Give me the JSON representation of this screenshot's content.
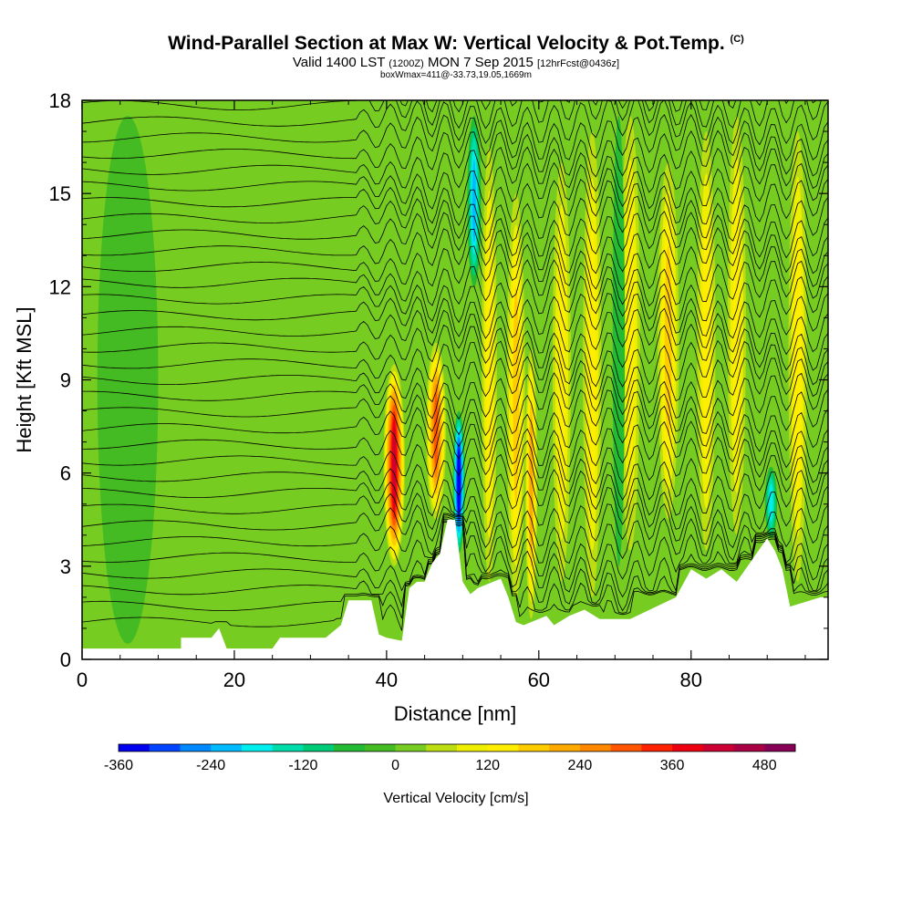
{
  "header": {
    "title": "Wind-Parallel Section at Max W: Vertical Velocity & Pot.Temp.",
    "title_mark": "(C)",
    "valid_prefix": "Valid 1400 LST",
    "valid_zulu": "(1200Z)",
    "valid_date": "MON 7 Sep 2015",
    "forecast": "[12hrFcst@0436z]",
    "boxinfo": "boxWmax=411@-33.73,19.05,1669m"
  },
  "chart_data": {
    "type": "heatmap",
    "xlabel": "Distance [nm]",
    "ylabel": "Height [Kft MSL]",
    "xlim": [
      0,
      98
    ],
    "ylim": [
      0,
      18
    ],
    "x_ticks": [
      "0",
      "20",
      "40",
      "60",
      "80"
    ],
    "x_tick_values": [
      0,
      20,
      40,
      60,
      80
    ],
    "y_ticks": [
      "0",
      "3",
      "6",
      "9",
      "12",
      "15",
      "18"
    ],
    "y_tick_values": [
      0,
      3,
      6,
      9,
      12,
      15,
      18
    ],
    "colorbar": {
      "title": "Vertical Velocity [cm/s]",
      "labels": [
        "-360",
        "-240",
        "-120",
        "0",
        "120",
        "240",
        "360",
        "480"
      ],
      "label_values": [
        -360,
        -240,
        -120,
        0,
        120,
        240,
        360,
        480
      ],
      "min": -360,
      "max": 520,
      "step": 40,
      "colors": [
        "#0000ee",
        "#0044ff",
        "#0088ff",
        "#00bbff",
        "#00eeee",
        "#00ddaa",
        "#00cc77",
        "#22bb33",
        "#44bb22",
        "#77cc22",
        "#bbdd11",
        "#eeee00",
        "#ffee00",
        "#ffcc00",
        "#ffaa00",
        "#ff8800",
        "#ff5500",
        "#ff2200",
        "#ee0011",
        "#cc0033",
        "#aa0044",
        "#880055"
      ]
    },
    "terrain": [
      [
        0,
        0.35
      ],
      [
        13,
        0.35
      ],
      [
        13,
        0.7
      ],
      [
        17,
        0.7
      ],
      [
        18,
        1.0
      ],
      [
        19,
        0.35
      ],
      [
        25,
        0.35
      ],
      [
        26,
        0.7
      ],
      [
        32,
        0.7
      ],
      [
        33,
        0.9
      ],
      [
        34,
        1.1
      ],
      [
        35,
        1.9
      ],
      [
        38,
        1.9
      ],
      [
        39,
        0.8
      ],
      [
        40,
        0.7
      ],
      [
        42,
        0.6
      ],
      [
        43,
        2.3
      ],
      [
        44,
        2.5
      ],
      [
        45,
        2.5
      ],
      [
        46,
        3.1
      ],
      [
        47,
        3.4
      ],
      [
        48,
        4.5
      ],
      [
        49,
        4.5
      ],
      [
        50,
        2.5
      ],
      [
        51,
        2.1
      ],
      [
        52,
        2.3
      ],
      [
        55,
        2.6
      ],
      [
        56,
        2.0
      ],
      [
        57,
        1.2
      ],
      [
        58,
        1.1
      ],
      [
        61,
        1.4
      ],
      [
        62,
        1.1
      ],
      [
        64,
        1.4
      ],
      [
        66,
        1.6
      ],
      [
        68,
        1.3
      ],
      [
        72,
        1.3
      ],
      [
        78,
        2.0
      ],
      [
        80,
        2.9
      ],
      [
        82,
        2.6
      ],
      [
        84,
        2.9
      ],
      [
        86,
        2.5
      ],
      [
        88,
        3.2
      ],
      [
        90,
        3.9
      ],
      [
        91,
        3.5
      ],
      [
        92,
        2.9
      ],
      [
        93,
        1.7
      ],
      [
        97,
        2.0
      ],
      [
        98,
        2.0
      ]
    ],
    "vertical_velocity_features": [
      {
        "x": 41,
        "ymin": 3.0,
        "ymax": 9.5,
        "w": 420,
        "width": 1.4
      },
      {
        "x": 46.5,
        "ymin": 4.5,
        "ymax": 10.2,
        "w": 300,
        "width": 1.3
      },
      {
        "x": 49.5,
        "ymin": 3.4,
        "ymax": 8.0,
        "w": -360,
        "width": 0.8
      },
      {
        "x": 51.5,
        "ymin": 12.0,
        "ymax": 17.5,
        "w": -200,
        "width": 0.9
      },
      {
        "x": 53.5,
        "ymin": 2.5,
        "ymax": 16.5,
        "w": 150,
        "width": 1.0
      },
      {
        "x": 57,
        "ymin": 2.0,
        "ymax": 15.0,
        "w": 160,
        "width": 1.2
      },
      {
        "x": 59,
        "ymin": 1.3,
        "ymax": 10.0,
        "w": 200,
        "width": 0.8
      },
      {
        "x": 63,
        "ymin": 2.5,
        "ymax": 16.0,
        "w": 130,
        "width": 1.2
      },
      {
        "x": 67,
        "ymin": 2.0,
        "ymax": 17.0,
        "w": 150,
        "width": 1.2
      },
      {
        "x": 72,
        "ymin": 3.5,
        "ymax": 17.5,
        "w": 140,
        "width": 1.3
      },
      {
        "x": 77,
        "ymin": 4.5,
        "ymax": 16.0,
        "w": 160,
        "width": 1.4
      },
      {
        "x": 82,
        "ymin": 3.5,
        "ymax": 17.0,
        "w": 140,
        "width": 1.2
      },
      {
        "x": 86,
        "ymin": 4.0,
        "ymax": 17.5,
        "w": 130,
        "width": 1.2
      },
      {
        "x": 90.5,
        "ymin": 3.9,
        "ymax": 6.2,
        "w": -160,
        "width": 0.8
      },
      {
        "x": 94,
        "ymin": 2.5,
        "ymax": 17.0,
        "w": 120,
        "width": 1.2
      },
      {
        "x": 70.5,
        "ymin": 3.0,
        "ymax": 17.5,
        "w": -40,
        "width": 0.8
      },
      {
        "x": 18,
        "ymin": 0.5,
        "ymax": 17.5,
        "w": 30,
        "width": 6.0
      },
      {
        "x": 6,
        "ymin": 0.5,
        "ymax": 17.5,
        "w": -20,
        "width": 4.0
      }
    ]
  }
}
